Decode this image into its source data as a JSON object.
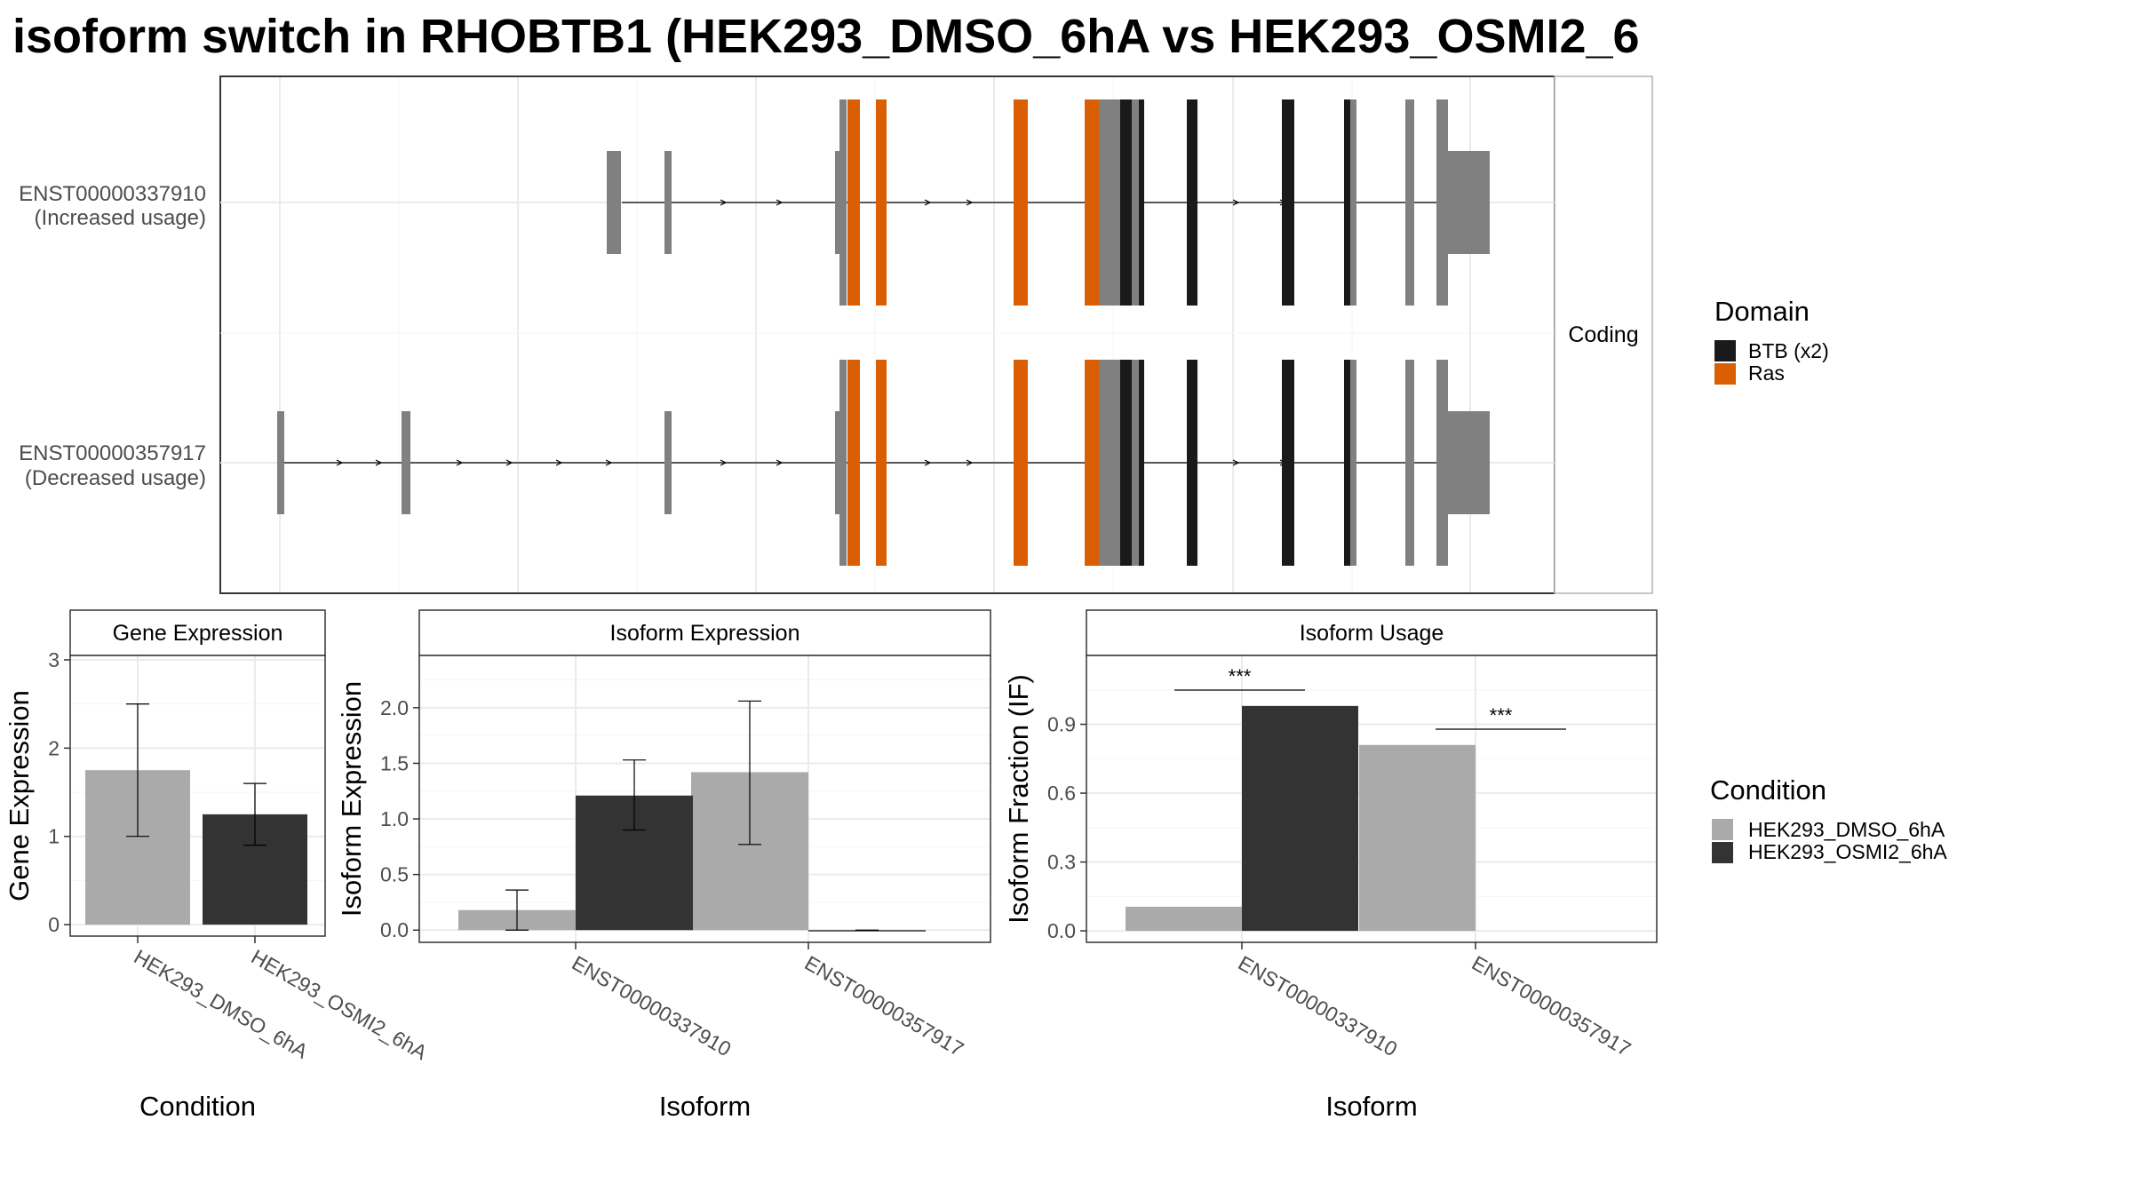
{
  "title": "isoform switch in RHOBTB1 (HEK293_DMSO_6hA vs HEK293_OSMI2_6",
  "colors": {
    "exon": "#808080",
    "btb": "#1a1a1a",
    "ras": "#d95f02",
    "dmso": "#aaaaaa",
    "osmi2": "#333333"
  },
  "chart_data": [
    {
      "type": "transcript-structure",
      "strip_label": "Coding",
      "transcripts": [
        {
          "id": "ENST00000337910",
          "usage": "(Increased usage)"
        },
        {
          "id": "ENST00000357917",
          "usage": "(Decreased usage)"
        }
      ],
      "legend": {
        "title": "Domain",
        "items": [
          "BTB (x2)",
          "Ras"
        ]
      }
    },
    {
      "type": "bar",
      "strip_label": "Gene Expression",
      "xlabel": "Condition",
      "ylabel": "Gene Expression",
      "categories": [
        "HEK293_DMSO_6hA",
        "HEK293_OSMI2_6hA"
      ],
      "values": [
        1.75,
        1.25
      ],
      "error_low": [
        1.0,
        0.9
      ],
      "error_high": [
        2.5,
        1.6
      ],
      "ylim": [
        -0.13,
        3.05
      ],
      "yticks": [
        0,
        1,
        2,
        3
      ]
    },
    {
      "type": "bar",
      "strip_label": "Isoform Expression",
      "xlabel": "Isoform",
      "ylabel": "Isoform Expression",
      "categories": [
        "ENST00000337910",
        "ENST00000357917"
      ],
      "series": [
        {
          "name": "HEK293_DMSO_6hA",
          "values": [
            0.18,
            1.42
          ],
          "error_low": [
            0.0,
            0.77
          ],
          "error_high": [
            0.36,
            2.06
          ]
        },
        {
          "name": "HEK293_OSMI2_6hA",
          "values": [
            1.21,
            0.0
          ],
          "error_low": [
            0.9,
            0.0
          ],
          "error_high": [
            1.53,
            0.0
          ]
        }
      ],
      "ylim": [
        -0.11,
        2.47
      ],
      "yticks": [
        0.0,
        0.5,
        1.0,
        1.5,
        2.0
      ]
    },
    {
      "type": "bar",
      "strip_label": "Isoform Usage",
      "xlabel": "Isoform",
      "ylabel": "Isoform Fraction (IF)",
      "categories": [
        "ENST00000337910",
        "ENST00000357917"
      ],
      "series": [
        {
          "name": "HEK293_DMSO_6hA",
          "values": [
            0.105,
            0.81
          ]
        },
        {
          "name": "HEK293_OSMI2_6hA",
          "values": [
            0.98,
            0.0
          ]
        }
      ],
      "significance": [
        "***",
        "***"
      ],
      "ylim": [
        -0.05,
        1.2
      ],
      "yticks": [
        0.0,
        0.3,
        0.6,
        0.9
      ]
    }
  ],
  "condition_legend": {
    "title": "Condition",
    "items": [
      "HEK293_DMSO_6hA",
      "HEK293_OSMI2_6hA"
    ]
  }
}
